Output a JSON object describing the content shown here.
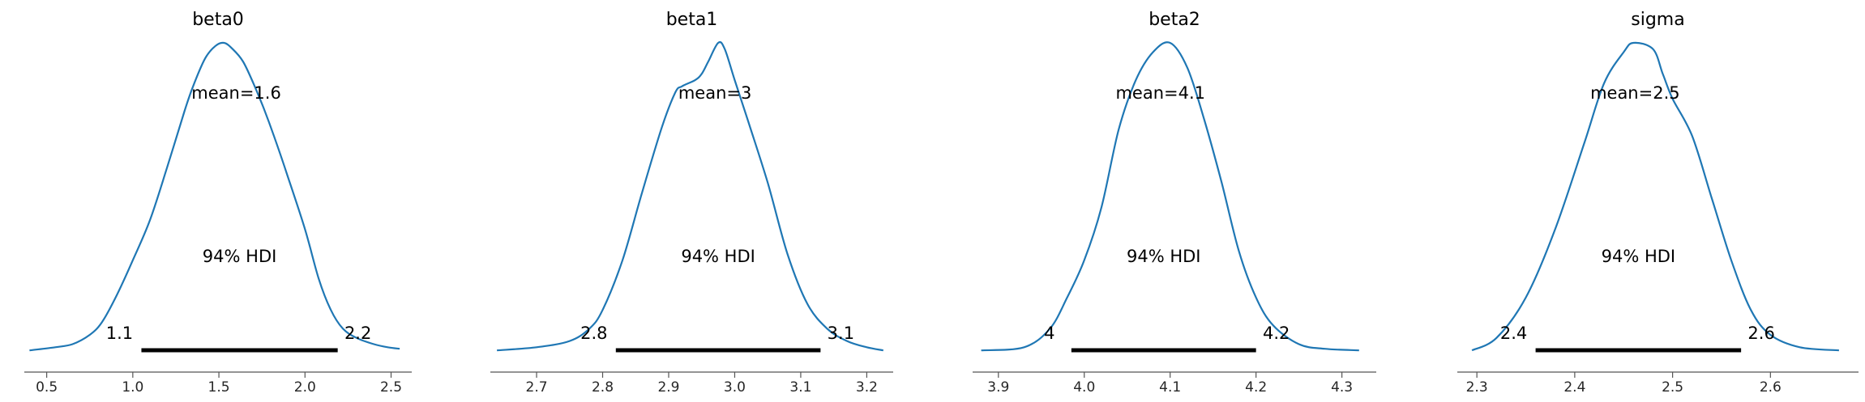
{
  "chart_data": [
    {
      "type": "area",
      "title": "beta0",
      "mean_label": "mean=1.6",
      "hdi_label": "94% HDI",
      "hdi_low_label": "1.1",
      "hdi_high_label": "2.2",
      "hdi": [
        1.05,
        2.19
      ],
      "xlim": [
        0.37,
        2.62
      ],
      "xticks": [
        0.5,
        1.0,
        1.5,
        2.0,
        2.5
      ],
      "xtick_labels": [
        "0.5",
        "1.0",
        "1.5",
        "2.0",
        "2.5"
      ],
      "x": [
        0.4,
        0.55,
        0.65,
        0.75,
        0.82,
        0.9,
        1.0,
        1.1,
        1.2,
        1.3,
        1.35,
        1.42,
        1.48,
        1.53,
        1.58,
        1.64,
        1.7,
        1.76,
        1.82,
        1.9,
        2.0,
        2.08,
        2.15,
        2.22,
        2.3,
        2.4,
        2.48,
        2.55
      ],
      "y": [
        0.01,
        0.02,
        0.03,
        0.06,
        0.1,
        0.18,
        0.3,
        0.43,
        0.6,
        0.78,
        0.86,
        0.95,
        0.99,
        1.0,
        0.98,
        0.94,
        0.87,
        0.79,
        0.7,
        0.57,
        0.4,
        0.24,
        0.14,
        0.08,
        0.05,
        0.03,
        0.02,
        0.015
      ]
    },
    {
      "type": "area",
      "title": "beta1",
      "mean_label": "mean=3",
      "hdi_label": "94% HDI",
      "hdi_low_label": "2.8",
      "hdi_high_label": "3.1",
      "hdi": [
        2.82,
        3.13
      ],
      "xlim": [
        2.63,
        3.24
      ],
      "xticks": [
        2.7,
        2.8,
        2.9,
        3.0,
        3.1,
        3.2
      ],
      "xtick_labels": [
        "2.7",
        "2.8",
        "2.9",
        "3.0",
        "3.1",
        "3.2"
      ],
      "x": [
        2.64,
        2.7,
        2.75,
        2.78,
        2.8,
        2.83,
        2.86,
        2.89,
        2.91,
        2.92,
        2.94,
        2.95,
        2.96,
        2.975,
        2.985,
        3.0,
        3.02,
        3.05,
        3.08,
        3.11,
        3.14,
        3.17,
        3.2,
        3.225
      ],
      "y": [
        0.01,
        0.02,
        0.04,
        0.08,
        0.14,
        0.3,
        0.52,
        0.73,
        0.84,
        0.86,
        0.88,
        0.9,
        0.94,
        1.0,
        0.98,
        0.88,
        0.75,
        0.55,
        0.32,
        0.16,
        0.08,
        0.04,
        0.02,
        0.01
      ]
    },
    {
      "type": "area",
      "title": "beta2",
      "mean_label": "mean=4.1",
      "hdi_label": "94% HDI",
      "hdi_low_label": "4",
      "hdi_high_label": "4.2",
      "hdi": [
        3.985,
        4.2
      ],
      "xlim": [
        3.87,
        4.34
      ],
      "xticks": [
        3.9,
        4.0,
        4.1,
        4.2,
        4.3
      ],
      "xtick_labels": [
        "3.9",
        "4.0",
        "4.1",
        "4.2",
        "4.3"
      ],
      "x": [
        3.88,
        3.93,
        3.96,
        3.98,
        4.0,
        4.02,
        4.04,
        4.06,
        4.08,
        4.1,
        4.12,
        4.14,
        4.16,
        4.18,
        4.2,
        4.22,
        4.25,
        4.28,
        4.32
      ],
      "y": [
        0.01,
        0.02,
        0.08,
        0.18,
        0.3,
        0.47,
        0.72,
        0.88,
        0.97,
        1.0,
        0.92,
        0.75,
        0.55,
        0.33,
        0.18,
        0.09,
        0.03,
        0.015,
        0.01
      ]
    },
    {
      "type": "area",
      "title": "sigma",
      "mean_label": "mean=2.5",
      "hdi_label": "94% HDI",
      "hdi_low_label": "2.4",
      "hdi_high_label": "2.6",
      "hdi": [
        2.36,
        2.57
      ],
      "xlim": [
        2.28,
        2.69
      ],
      "xticks": [
        2.3,
        2.4,
        2.5,
        2.6
      ],
      "xtick_labels": [
        "2.3",
        "2.4",
        "2.5",
        "2.6"
      ],
      "x": [
        2.295,
        2.32,
        2.35,
        2.38,
        2.41,
        2.43,
        2.45,
        2.46,
        2.48,
        2.49,
        2.5,
        2.52,
        2.54,
        2.56,
        2.58,
        2.6,
        2.63,
        2.67
      ],
      "y": [
        0.01,
        0.05,
        0.18,
        0.4,
        0.68,
        0.87,
        0.97,
        1.0,
        0.98,
        0.9,
        0.82,
        0.7,
        0.5,
        0.3,
        0.14,
        0.06,
        0.02,
        0.01
      ]
    }
  ]
}
